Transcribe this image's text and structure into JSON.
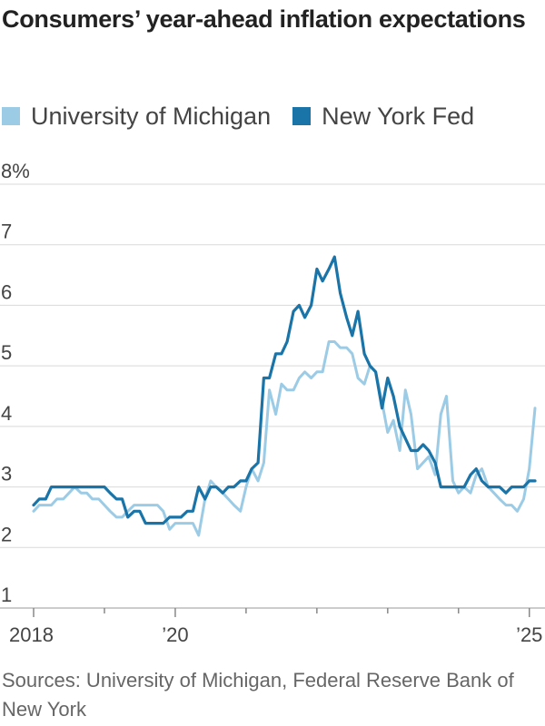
{
  "chart_data": {
    "type": "line",
    "title": "Consumers’ year-ahead inflation expectations",
    "xlabel": "",
    "ylabel": "",
    "ylim": [
      1,
      8
    ],
    "xlim": [
      2018.0,
      2025.17
    ],
    "y_ticks": [
      "8%",
      "7",
      "6",
      "5",
      "4",
      "3",
      "2",
      "1"
    ],
    "y_tick_values": [
      8,
      7,
      6,
      5,
      4,
      3,
      2,
      1
    ],
    "x_tick_labels": [
      {
        "label": "2018",
        "value": 2018
      },
      {
        "label": "’20",
        "value": 2020
      },
      {
        "label": "’25",
        "value": 2025
      }
    ],
    "x_minor_ticks": [
      2019,
      2021,
      2022,
      2023,
      2024
    ],
    "grid": true,
    "legend_position": "top",
    "series": [
      {
        "name": "University of Michigan",
        "color": "#9ccbe6",
        "x": [
          2018.0,
          2018.08,
          2018.17,
          2018.25,
          2018.33,
          2018.42,
          2018.5,
          2018.58,
          2018.67,
          2018.75,
          2018.83,
          2018.92,
          2019.0,
          2019.08,
          2019.17,
          2019.25,
          2019.33,
          2019.42,
          2019.5,
          2019.58,
          2019.67,
          2019.75,
          2019.83,
          2019.92,
          2020.0,
          2020.08,
          2020.17,
          2020.25,
          2020.33,
          2020.42,
          2020.5,
          2020.58,
          2020.67,
          2020.75,
          2020.83,
          2020.92,
          2021.0,
          2021.08,
          2021.17,
          2021.25,
          2021.33,
          2021.42,
          2021.5,
          2021.58,
          2021.67,
          2021.75,
          2021.83,
          2021.92,
          2022.0,
          2022.08,
          2022.17,
          2022.25,
          2022.33,
          2022.42,
          2022.5,
          2022.58,
          2022.67,
          2022.75,
          2022.83,
          2022.92,
          2023.0,
          2023.08,
          2023.17,
          2023.25,
          2023.33,
          2023.42,
          2023.5,
          2023.58,
          2023.67,
          2023.75,
          2023.83,
          2023.92,
          2024.0,
          2024.08,
          2024.17,
          2024.25,
          2024.33,
          2024.42,
          2024.5,
          2024.58,
          2024.67,
          2024.75,
          2024.83,
          2024.92,
          2025.0,
          2025.08
        ],
        "values": [
          2.6,
          2.7,
          2.7,
          2.7,
          2.8,
          2.8,
          2.9,
          3.0,
          2.9,
          2.9,
          2.8,
          2.8,
          2.7,
          2.6,
          2.5,
          2.5,
          2.6,
          2.7,
          2.7,
          2.7,
          2.7,
          2.7,
          2.6,
          2.3,
          2.4,
          2.4,
          2.4,
          2.4,
          2.2,
          2.8,
          3.1,
          3.0,
          2.9,
          2.8,
          2.7,
          2.6,
          3.0,
          3.3,
          3.1,
          3.4,
          4.6,
          4.2,
          4.7,
          4.6,
          4.6,
          4.8,
          4.9,
          4.8,
          4.9,
          4.9,
          5.4,
          5.4,
          5.3,
          5.3,
          5.2,
          4.8,
          4.7,
          5.0,
          4.9,
          4.4,
          3.9,
          4.1,
          3.6,
          4.6,
          4.2,
          3.3,
          3.4,
          3.5,
          3.2,
          4.2,
          4.5,
          3.1,
          2.9,
          3.0,
          2.9,
          3.2,
          3.3,
          3.0,
          2.9,
          2.8,
          2.7,
          2.7,
          2.6,
          2.8,
          3.3,
          4.3
        ]
      },
      {
        "name": "New York Fed",
        "color": "#1a74a8",
        "x": [
          2018.0,
          2018.08,
          2018.17,
          2018.25,
          2018.33,
          2018.42,
          2018.5,
          2018.58,
          2018.67,
          2018.75,
          2018.83,
          2018.92,
          2019.0,
          2019.08,
          2019.17,
          2019.25,
          2019.33,
          2019.42,
          2019.5,
          2019.58,
          2019.67,
          2019.75,
          2019.83,
          2019.92,
          2020.0,
          2020.08,
          2020.17,
          2020.25,
          2020.33,
          2020.42,
          2020.5,
          2020.58,
          2020.67,
          2020.75,
          2020.83,
          2020.92,
          2021.0,
          2021.08,
          2021.17,
          2021.25,
          2021.33,
          2021.42,
          2021.5,
          2021.58,
          2021.67,
          2021.75,
          2021.83,
          2021.92,
          2022.0,
          2022.08,
          2022.17,
          2022.25,
          2022.33,
          2022.42,
          2022.5,
          2022.58,
          2022.67,
          2022.75,
          2022.83,
          2022.92,
          2023.0,
          2023.08,
          2023.17,
          2023.25,
          2023.33,
          2023.42,
          2023.5,
          2023.58,
          2023.67,
          2023.75,
          2023.83,
          2023.92,
          2024.0,
          2024.08,
          2024.17,
          2024.25,
          2024.33,
          2024.42,
          2024.5,
          2024.58,
          2024.67,
          2024.75,
          2024.83,
          2024.92,
          2025.0,
          2025.08
        ],
        "values": [
          2.7,
          2.8,
          2.8,
          3.0,
          3.0,
          3.0,
          3.0,
          3.0,
          3.0,
          3.0,
          3.0,
          3.0,
          3.0,
          2.9,
          2.8,
          2.8,
          2.5,
          2.6,
          2.6,
          2.4,
          2.4,
          2.4,
          2.4,
          2.5,
          2.5,
          2.5,
          2.6,
          2.6,
          3.0,
          2.8,
          3.0,
          3.0,
          2.9,
          3.0,
          3.0,
          3.1,
          3.1,
          3.3,
          3.4,
          4.8,
          4.8,
          5.2,
          5.2,
          5.4,
          5.9,
          6.0,
          5.8,
          6.0,
          6.6,
          6.4,
          6.6,
          6.8,
          6.2,
          5.8,
          5.5,
          5.9,
          5.2,
          5.0,
          4.9,
          4.3,
          4.8,
          4.5,
          4.0,
          3.8,
          3.6,
          3.6,
          3.7,
          3.6,
          3.4,
          3.0,
          3.0,
          3.0,
          3.0,
          3.0,
          3.2,
          3.3,
          3.1,
          3.0,
          3.0,
          3.0,
          2.9,
          3.0,
          3.0,
          3.0,
          3.1,
          3.1
        ]
      }
    ]
  },
  "source": "Sources: University of Michigan, Federal Reserve Bank of New York"
}
